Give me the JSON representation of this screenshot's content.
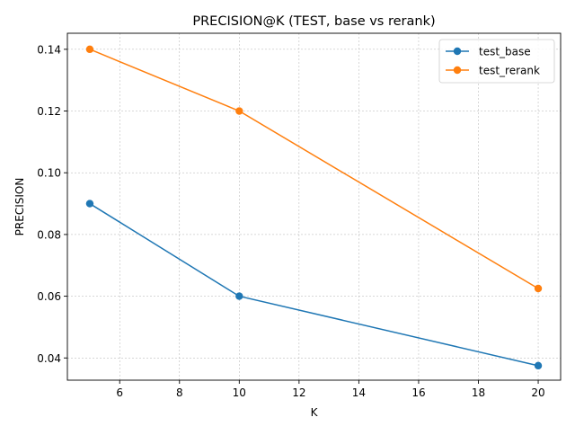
{
  "chart_data": {
    "type": "line",
    "title": "PRECISION@K (TEST, base vs rerank)",
    "xlabel": "K",
    "ylabel": "PRECISION",
    "x": [
      5,
      10,
      20
    ],
    "xlim": [
      4.25,
      20.75
    ],
    "ylim": [
      0.0328,
      0.1452
    ],
    "xticks": [
      6,
      8,
      10,
      12,
      14,
      16,
      18,
      20
    ],
    "xtick_labels": [
      "6",
      "8",
      "10",
      "12",
      "14",
      "16",
      "18",
      "20"
    ],
    "yticks": [
      0.04,
      0.06,
      0.08,
      0.1,
      0.12,
      0.14
    ],
    "ytick_labels": [
      "0.04",
      "0.06",
      "0.08",
      "0.10",
      "0.12",
      "0.14"
    ],
    "grid": true,
    "legend_position": "top-right",
    "series": [
      {
        "name": "test_base",
        "color": "#1f77b4",
        "values": [
          0.09,
          0.06,
          0.0375
        ]
      },
      {
        "name": "test_rerank",
        "color": "#ff7f0e",
        "values": [
          0.14,
          0.12,
          0.0625
        ]
      }
    ]
  }
}
